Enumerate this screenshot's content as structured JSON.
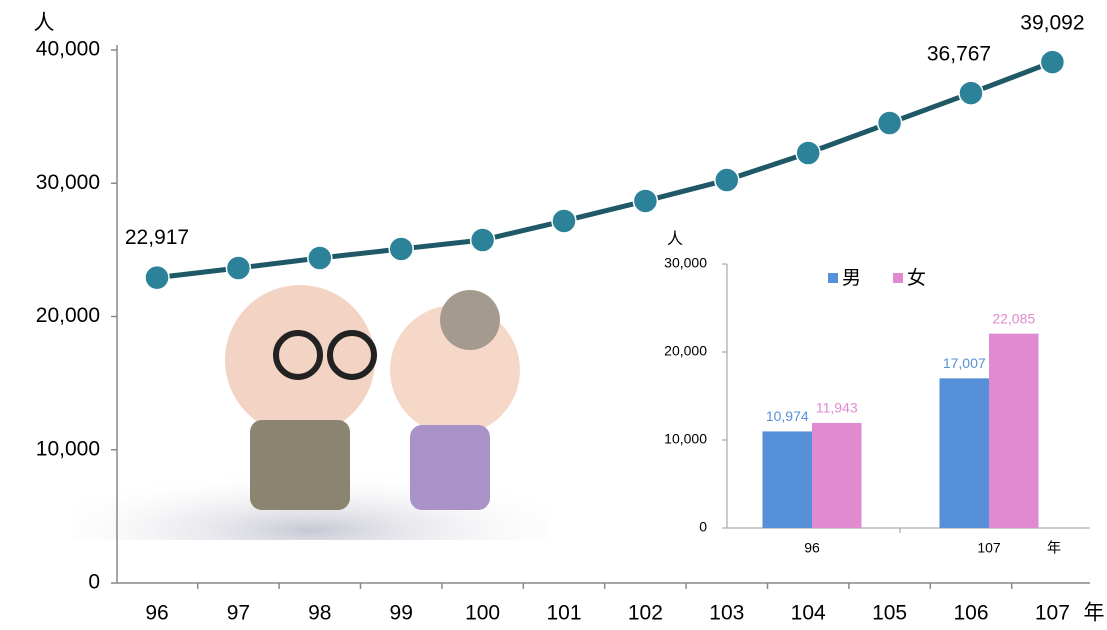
{
  "chart_data": [
    {
      "type": "line",
      "y_unit": "人",
      "x_unit": "年",
      "categories": [
        "96",
        "97",
        "98",
        "99",
        "100",
        "101",
        "102",
        "103",
        "104",
        "105",
        "106",
        "107"
      ],
      "values": [
        22917,
        23640,
        24390,
        25070,
        25740,
        27170,
        28670,
        30240,
        32270,
        34520,
        36767,
        39092
      ],
      "value_labels": [
        "22,917",
        null,
        null,
        null,
        null,
        null,
        null,
        null,
        null,
        null,
        "36,767",
        "39,092"
      ],
      "color": "#1f5866",
      "marker_color": "#2c8299",
      "ylim": [
        0,
        40000
      ],
      "yticks": [
        {
          "value": 0,
          "label": "0"
        },
        {
          "value": 10000,
          "label": "10,000"
        },
        {
          "value": 20000,
          "label": "20,000"
        },
        {
          "value": 30000,
          "label": "30,000"
        },
        {
          "value": 40000,
          "label": "40,000"
        }
      ]
    },
    {
      "type": "bar",
      "y_unit": "人",
      "x_unit": "年",
      "categories": [
        "96",
        "107"
      ],
      "series": [
        {
          "name": "男",
          "color": "#5590d8",
          "values": [
            10974,
            17007
          ],
          "value_labels": [
            "10,974",
            "17,007"
          ]
        },
        {
          "name": "女",
          "color": "#e08ad2",
          "values": [
            11943,
            22085
          ],
          "value_labels": [
            "11,943",
            "22,085"
          ]
        }
      ],
      "ylim": [
        0,
        30000
      ],
      "yticks": [
        {
          "value": 0,
          "label": "0"
        },
        {
          "value": 10000,
          "label": "10,000"
        },
        {
          "value": 20000,
          "label": "20,000"
        },
        {
          "value": 30000,
          "label": "30,000"
        }
      ],
      "legend": "top"
    }
  ]
}
